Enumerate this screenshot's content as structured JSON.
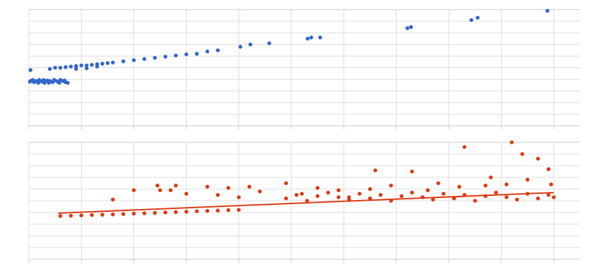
{
  "chart_data": [
    {
      "type": "scatter",
      "grid": true,
      "xlim": [
        0,
        10.5
      ],
      "ylim": [
        0,
        10
      ],
      "xticks": [
        0,
        1,
        2,
        3,
        4,
        5,
        6,
        7,
        8,
        9,
        10
      ],
      "yticks": [
        0,
        1,
        2,
        3,
        4,
        5,
        6,
        7,
        8,
        9,
        10
      ],
      "series": [
        {
          "color": "#3366cc",
          "x": [
            0.02,
            0.05,
            0.1,
            0.15,
            0.2,
            0.25,
            0.3,
            0.35,
            0.4,
            0.45,
            0.5,
            0.55,
            0.6,
            0.65,
            0.7,
            0.74,
            0.08,
            0.18,
            0.28,
            0.38,
            0.48,
            0.58,
            0.68,
            0.03,
            0.4,
            0.5,
            0.6,
            0.7,
            0.8,
            0.9,
            1.0,
            1.1,
            1.2,
            1.3,
            1.4,
            1.5,
            1.6,
            1.8,
            2.0,
            2.2,
            2.4,
            2.6,
            2.8,
            3.0,
            3.2,
            3.4,
            3.6,
            0.9,
            1.1,
            1.3,
            4.03,
            4.22,
            4.58,
            5.31,
            5.38,
            5.55,
            7.21,
            7.28,
            8.43,
            8.55,
            9.88
          ],
          "values": [
            3.8,
            3.9,
            3.75,
            3.85,
            3.95,
            3.8,
            3.7,
            3.9,
            3.85,
            3.75,
            3.9,
            3.8,
            3.95,
            3.85,
            3.75,
            3.7,
            3.95,
            3.7,
            3.95,
            3.7,
            3.95,
            3.7,
            3.9,
            4.8,
            4.9,
            5.0,
            5.0,
            5.05,
            5.1,
            5.15,
            5.2,
            5.2,
            5.25,
            5.3,
            5.35,
            5.4,
            5.45,
            5.55,
            5.65,
            5.75,
            5.85,
            5.95,
            6.05,
            6.15,
            6.2,
            6.4,
            6.5,
            4.9,
            4.95,
            5.1,
            6.8,
            7.0,
            7.1,
            7.5,
            7.6,
            7.6,
            8.4,
            8.5,
            9.1,
            9.3,
            9.9
          ]
        }
      ]
    },
    {
      "type": "scatter",
      "grid": true,
      "xlim": [
        0,
        10.5
      ],
      "ylim": [
        0,
        10
      ],
      "xticks": [
        0,
        1,
        2,
        3,
        4,
        5,
        6,
        7,
        8,
        9,
        10
      ],
      "yticks": [
        0,
        1,
        2,
        3,
        4,
        5,
        6,
        7,
        8,
        9,
        10
      ],
      "series": [
        {
          "color": "#dc3912",
          "x": [
            0.6,
            0.8,
            1.0,
            1.2,
            1.4,
            1.6,
            1.8,
            2.0,
            2.2,
            2.4,
            2.6,
            2.8,
            3.0,
            3.2,
            3.4,
            3.6,
            3.8,
            4.0,
            1.6,
            2.0,
            2.45,
            2.5,
            2.7,
            2.8,
            3.0,
            3.4,
            3.6,
            3.8,
            4.0,
            4.2,
            4.4,
            4.9,
            5.2,
            5.5,
            5.9,
            6.1,
            6.5,
            6.6,
            6.9,
            7.3,
            7.6,
            7.8,
            8.2,
            8.3,
            8.7,
            8.8,
            9.1,
            9.2,
            9.4,
            9.5,
            9.7,
            9.9,
            9.95,
            4.9,
            5.1,
            5.3,
            5.5,
            5.7,
            5.9,
            6.1,
            6.3,
            6.5,
            6.7,
            6.9,
            7.1,
            7.3,
            7.5,
            7.7,
            7.9,
            8.1,
            8.3,
            8.5,
            8.7,
            8.9,
            9.1,
            9.3,
            9.5,
            9.7,
            9.9,
            10.0
          ],
          "values": [
            3.7,
            3.72,
            3.75,
            3.78,
            3.8,
            3.83,
            3.86,
            3.9,
            3.93,
            3.96,
            4.0,
            4.03,
            4.06,
            4.1,
            4.13,
            4.16,
            4.2,
            4.22,
            5.1,
            5.9,
            6.3,
            5.9,
            5.9,
            6.3,
            5.6,
            6.2,
            5.5,
            6.1,
            5.3,
            6.2,
            5.8,
            6.5,
            5.6,
            6.1,
            5.9,
            5.3,
            6.0,
            7.6,
            6.3,
            7.5,
            5.9,
            6.5,
            6.2,
            9.6,
            6.3,
            7.0,
            6.4,
            10.0,
            9.0,
            6.8,
            8.6,
            7.7,
            6.4,
            5.2,
            5.5,
            5.0,
            5.4,
            5.7,
            5.3,
            5.1,
            5.6,
            5.2,
            5.5,
            5.0,
            5.4,
            5.7,
            5.3,
            5.1,
            5.6,
            5.2,
            5.5,
            5.0,
            5.4,
            5.7,
            5.3,
            5.1,
            5.6,
            5.2,
            5.5,
            5.3
          ]
        }
      ],
      "trendline": {
        "color": "#dc3912",
        "x": [
          0.56,
          10.0
        ],
        "values": [
          3.94,
          5.7
        ]
      }
    }
  ]
}
